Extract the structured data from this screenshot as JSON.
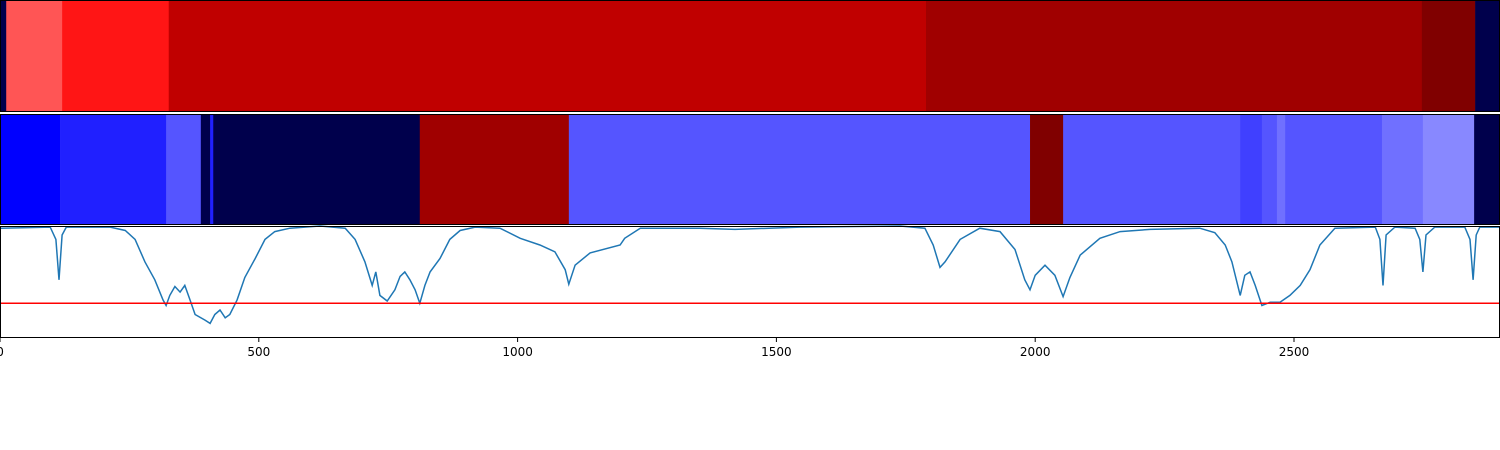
{
  "chart_data": [
    {
      "type": "heatmap",
      "xlim": [
        0,
        2898
      ],
      "bins": [
        0,
        12,
        120,
        326,
        1789,
        2747,
        2850,
        2898
      ],
      "colors": [
        "#00004c",
        "#ff5555",
        "#ff1515",
        "#c00000",
        "#a00000",
        "#800000",
        "#00004c"
      ]
    },
    {
      "type": "heatmap",
      "xlim": [
        0,
        2898
      ],
      "bins": [
        0,
        116,
        321,
        388,
        406,
        412,
        811,
        1099,
        1990,
        2054,
        2396,
        2438,
        2467,
        2483,
        2670,
        2749,
        2848,
        2898
      ],
      "colors": [
        "#0000ff",
        "#2020ff",
        "#5555ff",
        "#00004c",
        "#2020ff",
        "#00004c",
        "#a00000",
        "#5555ff",
        "#800000",
        "#5555ff",
        "#4040ff",
        "#5555ff",
        "#7070ff",
        "#5555ff",
        "#7070ff",
        "#8888ff",
        "#00004c"
      ]
    },
    {
      "type": "line",
      "xlim": [
        0,
        2898
      ],
      "xticks": [
        0,
        500,
        1000,
        1500,
        2000,
        2500
      ],
      "ylim": [
        0,
        1
      ],
      "color": "#1f77b4",
      "hlines": [
        {
          "value": 0.31,
          "color": "#ff0000"
        }
      ],
      "x": [
        0,
        97,
        108,
        114,
        120,
        128,
        213,
        242,
        261,
        280,
        299,
        315,
        321,
        328,
        338,
        348,
        357,
        367,
        377,
        396,
        406,
        415,
        425,
        435,
        444,
        458,
        473,
        493,
        512,
        531,
        560,
        618,
        667,
        686,
        705,
        719,
        726,
        734,
        748,
        763,
        773,
        782,
        792,
        802,
        811,
        821,
        831,
        850,
        869,
        889,
        918,
        966,
        1005,
        1043,
        1072,
        1092,
        1099,
        1111,
        1140,
        1198,
        1207,
        1237,
        1352,
        1420,
        1546,
        1739,
        1787,
        1803,
        1816,
        1826,
        1855,
        1893,
        1932,
        1961,
        1980,
        1990,
        2000,
        2019,
        2038,
        2054,
        2067,
        2087,
        2125,
        2164,
        2222,
        2318,
        2347,
        2367,
        2380,
        2396,
        2405,
        2415,
        2425,
        2438,
        2454,
        2473,
        2492,
        2512,
        2531,
        2550,
        2579,
        2657,
        2666,
        2672,
        2678,
        2695,
        2734,
        2743,
        2749,
        2755,
        2772,
        2830,
        2840,
        2846,
        2852,
        2859,
        2898
      ],
      "values": [
        0.98,
        0.99,
        0.88,
        0.52,
        0.92,
        0.99,
        0.99,
        0.96,
        0.88,
        0.68,
        0.52,
        0.34,
        0.29,
        0.38,
        0.46,
        0.41,
        0.47,
        0.34,
        0.21,
        0.16,
        0.13,
        0.21,
        0.25,
        0.18,
        0.21,
        0.34,
        0.54,
        0.71,
        0.88,
        0.95,
        0.98,
        1.0,
        0.98,
        0.88,
        0.68,
        0.47,
        0.59,
        0.38,
        0.33,
        0.43,
        0.55,
        0.59,
        0.52,
        0.43,
        0.31,
        0.47,
        0.59,
        0.71,
        0.88,
        0.96,
        0.99,
        0.98,
        0.89,
        0.83,
        0.77,
        0.61,
        0.48,
        0.65,
        0.76,
        0.83,
        0.89,
        0.98,
        0.98,
        0.97,
        0.99,
        1.0,
        0.98,
        0.83,
        0.63,
        0.68,
        0.88,
        0.98,
        0.95,
        0.79,
        0.52,
        0.43,
        0.56,
        0.65,
        0.56,
        0.37,
        0.54,
        0.74,
        0.89,
        0.95,
        0.97,
        0.98,
        0.94,
        0.83,
        0.68,
        0.38,
        0.56,
        0.59,
        0.47,
        0.29,
        0.32,
        0.32,
        0.38,
        0.47,
        0.61,
        0.83,
        0.98,
        0.99,
        0.88,
        0.47,
        0.92,
        0.99,
        0.98,
        0.88,
        0.59,
        0.92,
        0.99,
        0.99,
        0.88,
        0.52,
        0.92,
        0.99,
        0.99
      ]
    }
  ]
}
